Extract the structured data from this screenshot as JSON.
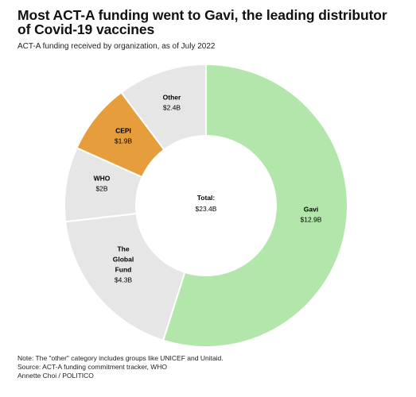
{
  "title": "Most ACT-A funding went to Gavi, the leading distributor of Covid-19 vaccines",
  "subtitle": "ACT-A funding received by organization, as of July 2022",
  "chart_data": {
    "type": "pie",
    "variant": "donut",
    "unit": "$B",
    "center_label": "Total:",
    "center_value": "$23.4B",
    "slices": [
      {
        "name": "Gavi",
        "value": 12.9,
        "label": "$12.9B",
        "color": "#b3e6aa"
      },
      {
        "name": "The Global Fund",
        "value": 4.3,
        "label": "$4.3B",
        "color": "#e6e6e6"
      },
      {
        "name": "WHO",
        "value": 2.0,
        "label": "$2B",
        "color": "#e6e6e6"
      },
      {
        "name": "CEPI",
        "value": 1.9,
        "label": "$1.9B",
        "color": "#e69d3c"
      },
      {
        "name": "Other",
        "value": 2.4,
        "label": "$2.4B",
        "color": "#e6e6e6"
      }
    ]
  },
  "footer": {
    "note": "Note: The \"other\" category includes groups like UNICEF and Unitaid.",
    "source": "Source: ACT-A funding commitment tracker, WHO",
    "credit": "Annette Choi / POLITICO"
  }
}
